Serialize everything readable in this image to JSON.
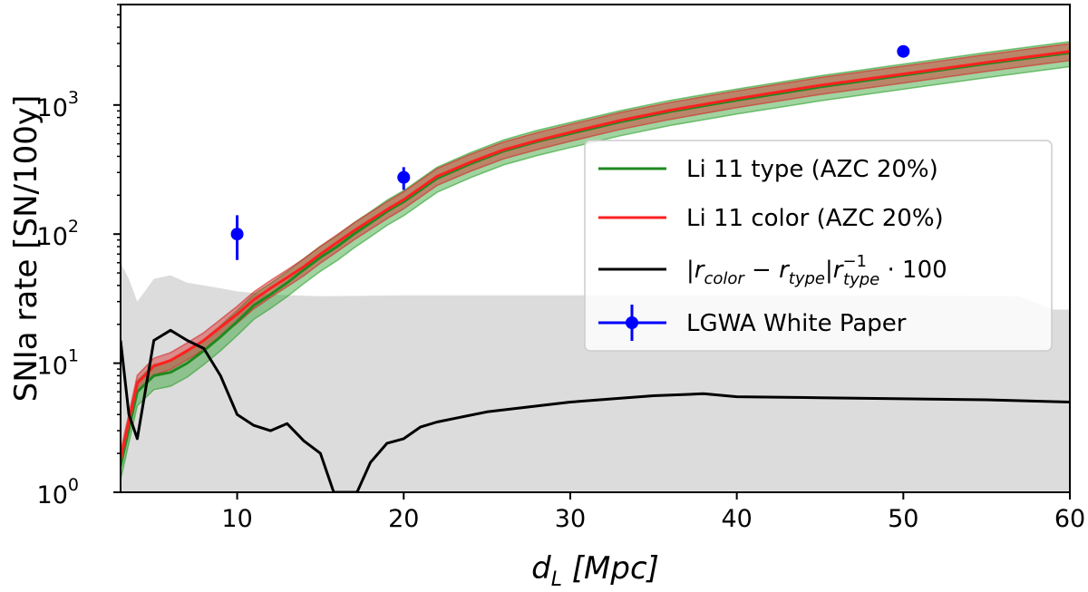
{
  "chart_data": {
    "type": "line",
    "xlabel_main": "d",
    "xlabel_sub": "L",
    "xlabel_unit": " [Mpc]",
    "ylabel": "SNIa rate [SN/100y]",
    "xlim": [
      3,
      60
    ],
    "ylim": [
      1,
      6000
    ],
    "yscale": "log",
    "grid": false,
    "legend_position": "center-right",
    "x_ticks": [
      "10",
      "20",
      "30",
      "40",
      "50",
      "60"
    ],
    "y_ticks": [
      {
        "base": "10",
        "exp": "0"
      },
      {
        "base": "10",
        "exp": "1"
      },
      {
        "base": "10",
        "exp": "2"
      },
      {
        "base": "10",
        "exp": "3"
      }
    ],
    "series": [
      {
        "name": "Li 11 type (AZC 20%)",
        "color": "#1f8a1f",
        "x": [
          3,
          4,
          5,
          6,
          7,
          8,
          9,
          10,
          11,
          12,
          13,
          14,
          15,
          16,
          17,
          18,
          19,
          20,
          22,
          24,
          26,
          28,
          30,
          33,
          36,
          40,
          45,
          50,
          55,
          60
        ],
        "y": [
          1.6,
          6,
          8,
          8.5,
          10,
          12.5,
          16,
          21,
          28,
          34,
          42,
          53,
          66,
          80,
          100,
          122,
          150,
          178,
          270,
          350,
          440,
          520,
          600,
          740,
          890,
          1090,
          1380,
          1700,
          2090,
          2540
        ]
      },
      {
        "name": "Li 11 color (AZC 20%)",
        "color": "#ff2020",
        "x": [
          3,
          4,
          5,
          6,
          7,
          8,
          9,
          10,
          11,
          12,
          13,
          14,
          15,
          16,
          17,
          18,
          19,
          20,
          22,
          24,
          26,
          28,
          30,
          33,
          36,
          40,
          45,
          50,
          55,
          60
        ],
        "y": [
          1.8,
          7,
          9.5,
          10.5,
          12.5,
          15,
          19,
          24,
          31,
          38,
          46,
          56,
          70,
          86,
          106,
          128,
          155,
          185,
          280,
          360,
          450,
          530,
          615,
          760,
          910,
          1120,
          1420,
          1740,
          2140,
          2600
        ]
      },
      {
        "name": "|r_color − r_type| r_type^−1 · 100",
        "color": "#000000",
        "x": [
          3,
          3.5,
          4,
          5,
          6,
          7,
          8,
          9,
          10,
          11,
          12,
          13,
          14,
          15,
          15.8,
          17.2,
          18,
          19,
          20,
          21,
          22,
          25,
          30,
          35,
          38,
          40,
          45,
          50,
          55,
          60
        ],
        "y": [
          15,
          4,
          2.6,
          15,
          18,
          15,
          13,
          8,
          4,
          3.3,
          3,
          3.4,
          2.5,
          2,
          1,
          1,
          1.7,
          2.4,
          2.6,
          3.2,
          3.5,
          4.2,
          5,
          5.6,
          5.8,
          5.5,
          5.4,
          5.3,
          5.2,
          5.0
        ]
      }
    ],
    "bands": [
      {
        "for": "Li 11 type (AZC 20%)",
        "color": "#2ca02c",
        "factor_low": 0.78,
        "factor_high": 1.22
      },
      {
        "for": "Li 11 color (AZC 20%)",
        "color": "#d62728",
        "factor_low": 0.85,
        "factor_high": 1.15
      },
      {
        "for": "gray uncertainty region",
        "color": "#dcdcdc",
        "x": [
          3,
          3.5,
          4,
          5,
          6,
          7,
          8,
          9,
          10,
          12,
          15,
          20,
          30,
          40,
          50,
          57,
          59,
          60
        ],
        "upper": [
          60,
          45,
          30,
          45,
          48,
          42,
          40,
          38,
          36,
          34,
          33,
          33.5,
          33.5,
          33.5,
          33.5,
          33,
          26,
          26
        ],
        "lower": [
          1,
          1,
          1,
          1,
          1,
          1,
          1,
          1,
          1,
          1,
          1,
          1,
          1,
          1,
          1,
          1,
          1,
          1
        ]
      }
    ],
    "points": {
      "name": "LGWA White Paper",
      "color": "#0000ff",
      "x": [
        10,
        20,
        50
      ],
      "y": [
        100,
        275,
        2600
      ],
      "err_low": [
        63,
        220,
        2600
      ],
      "err_high": [
        140,
        330,
        2600
      ]
    },
    "legend": [
      {
        "label": "Li 11 type (AZC 20%)",
        "kind": "line",
        "color": "#1f8a1f"
      },
      {
        "label": "Li 11 color (AZC 20%)",
        "kind": "line",
        "color": "#ff2020"
      },
      {
        "label": "|rcolor − rtype|rtype−1 · 100",
        "kind": "line",
        "color": "#000000",
        "math": {
          "pipe": "|r",
          "sub1": "color",
          "mid": " − r",
          "sub2": "type",
          "mid2": "|r",
          "sup3": "−1",
          "sub3": "type",
          "tail": " · 100"
        }
      },
      {
        "label": "LGWA White Paper",
        "kind": "errpoint",
        "color": "#0000ff"
      }
    ]
  }
}
